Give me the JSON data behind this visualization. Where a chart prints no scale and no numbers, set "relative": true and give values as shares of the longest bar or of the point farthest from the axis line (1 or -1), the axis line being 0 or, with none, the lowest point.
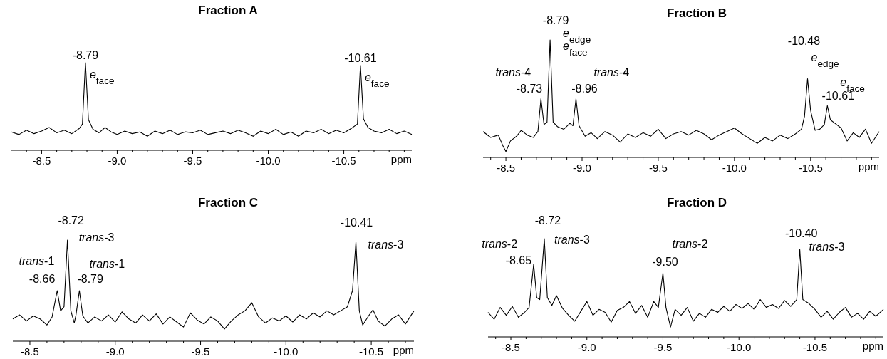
{
  "chart_data": [
    {
      "type": "line",
      "title": "Fraction A",
      "xlabel": "ppm",
      "relative": true,
      "xlim": [
        -8.3,
        -10.95
      ],
      "xticks": [
        {
          "value": -8.4,
          "label": null
        },
        -8.5,
        {
          "value": -8.6,
          "label": null
        },
        {
          "value": -8.7,
          "label": null
        },
        {
          "value": -8.8,
          "label": null
        },
        {
          "value": -8.9,
          "label": null
        },
        {
          "value": -9,
          "label": "-9.0"
        },
        {
          "value": -9.1,
          "label": null
        },
        {
          "value": -9.2,
          "label": null
        },
        {
          "value": -9.3,
          "label": null
        },
        {
          "value": -9.4,
          "label": null
        },
        -9.5,
        {
          "value": -9.6,
          "label": null
        },
        {
          "value": -9.7,
          "label": null
        },
        {
          "value": -9.8,
          "label": null
        },
        {
          "value": -9.9,
          "label": null
        },
        {
          "value": -10,
          "label": "-10.0"
        },
        {
          "value": -10.1,
          "label": null
        },
        {
          "value": -10.2,
          "label": null
        },
        {
          "value": -10.3,
          "label": null
        },
        {
          "value": -10.4,
          "label": null
        },
        -10.5,
        {
          "value": -10.6,
          "label": null
        },
        {
          "value": -10.7,
          "label": null
        },
        {
          "value": -10.8,
          "label": null
        },
        {
          "value": -10.9,
          "label": null
        }
      ],
      "series": [
        {
          "color": "#000000",
          "x": [
            -8.3,
            -8.35,
            -8.4,
            -8.45,
            -8.5,
            -8.55,
            -8.6,
            -8.65,
            -8.7,
            -8.75,
            -8.77,
            -8.79,
            -8.81,
            -8.84,
            -8.88,
            -8.92,
            -8.96,
            -9.0,
            -9.05,
            -9.1,
            -9.15,
            -9.2,
            -9.25,
            -9.3,
            -9.35,
            -9.4,
            -9.45,
            -9.5,
            -9.55,
            -9.6,
            -9.65,
            -9.7,
            -9.75,
            -9.8,
            -9.85,
            -9.9,
            -9.95,
            -10.0,
            -10.05,
            -10.1,
            -10.15,
            -10.2,
            -10.25,
            -10.3,
            -10.35,
            -10.4,
            -10.45,
            -10.5,
            -10.55,
            -10.59,
            -10.61,
            -10.63,
            -10.66,
            -10.7,
            -10.75,
            -10.8,
            -10.85,
            -10.9,
            -10.95
          ],
          "values": [
            0.21,
            0.18,
            0.23,
            0.19,
            0.22,
            0.26,
            0.2,
            0.23,
            0.19,
            0.25,
            0.3,
            1.0,
            0.35,
            0.24,
            0.2,
            0.26,
            0.21,
            0.18,
            0.22,
            0.19,
            0.21,
            0.16,
            0.22,
            0.19,
            0.23,
            0.18,
            0.21,
            0.2,
            0.23,
            0.18,
            0.2,
            0.22,
            0.19,
            0.23,
            0.2,
            0.16,
            0.22,
            0.19,
            0.24,
            0.18,
            0.21,
            0.16,
            0.22,
            0.2,
            0.24,
            0.19,
            0.23,
            0.2,
            0.25,
            0.3,
            0.97,
            0.36,
            0.26,
            0.22,
            0.2,
            0.24,
            0.19,
            0.22,
            0.18
          ]
        }
      ],
      "annotations": [
        {
          "text": "-8.79",
          "x": -8.79,
          "y": 1.0
        },
        {
          "text": "e$_{face}$",
          "x": -8.79,
          "y": 1.0
        },
        {
          "text": "-10.61",
          "x": -10.61,
          "y": 0.97
        },
        {
          "text": "e$_{face}$",
          "x": -10.61,
          "y": 0.97
        }
      ]
    },
    {
      "type": "line",
      "title": "Fraction B",
      "xlabel": "ppm",
      "relative": true,
      "xlim": [
        -8.35,
        -10.95
      ],
      "xticks": [
        {
          "value": -8.4,
          "label": null
        },
        -8.5,
        {
          "value": -8.6,
          "label": null
        },
        {
          "value": -8.7,
          "label": null
        },
        {
          "value": -8.8,
          "label": null
        },
        {
          "value": -8.9,
          "label": null
        },
        {
          "value": -9,
          "label": "-9.0"
        },
        {
          "value": -9.1,
          "label": null
        },
        {
          "value": -9.2,
          "label": null
        },
        {
          "value": -9.3,
          "label": null
        },
        {
          "value": -9.4,
          "label": null
        },
        -9.5,
        {
          "value": -9.6,
          "label": null
        },
        {
          "value": -9.7,
          "label": null
        },
        {
          "value": -9.8,
          "label": null
        },
        {
          "value": -9.9,
          "label": null
        },
        {
          "value": -10,
          "label": "-10.0"
        },
        {
          "value": -10.1,
          "label": null
        },
        {
          "value": -10.2,
          "label": null
        },
        {
          "value": -10.3,
          "label": null
        },
        {
          "value": -10.4,
          "label": null
        },
        -10.5,
        {
          "value": -10.6,
          "label": null
        },
        {
          "value": -10.7,
          "label": null
        },
        {
          "value": -10.8,
          "label": null
        },
        {
          "value": -10.9,
          "label": null
        }
      ],
      "series": [
        {
          "color": "#000000",
          "x": [
            -8.35,
            -8.4,
            -8.45,
            -8.48,
            -8.5,
            -8.53,
            -8.57,
            -8.6,
            -8.64,
            -8.68,
            -8.71,
            -8.73,
            -8.75,
            -8.77,
            -8.79,
            -8.81,
            -8.84,
            -8.88,
            -8.92,
            -8.94,
            -8.96,
            -8.98,
            -9.02,
            -9.06,
            -9.1,
            -9.15,
            -9.2,
            -9.25,
            -9.3,
            -9.35,
            -9.4,
            -9.45,
            -9.5,
            -9.55,
            -9.6,
            -9.65,
            -9.7,
            -9.75,
            -9.8,
            -9.85,
            -9.9,
            -9.95,
            -10.0,
            -10.05,
            -10.1,
            -10.15,
            -10.2,
            -10.25,
            -10.3,
            -10.35,
            -10.4,
            -10.44,
            -10.46,
            -10.48,
            -10.5,
            -10.53,
            -10.56,
            -10.59,
            -10.61,
            -10.63,
            -10.66,
            -10.7,
            -10.74,
            -10.78,
            -10.82,
            -10.86,
            -10.9,
            -10.95
          ],
          "values": [
            0.22,
            0.17,
            0.19,
            0.1,
            0.05,
            0.14,
            0.18,
            0.23,
            0.19,
            0.17,
            0.22,
            0.5,
            0.28,
            0.3,
            1.0,
            0.3,
            0.26,
            0.24,
            0.29,
            0.27,
            0.5,
            0.27,
            0.18,
            0.21,
            0.16,
            0.22,
            0.19,
            0.13,
            0.2,
            0.17,
            0.21,
            0.18,
            0.24,
            0.16,
            0.2,
            0.22,
            0.19,
            0.23,
            0.2,
            0.15,
            0.19,
            0.22,
            0.25,
            0.2,
            0.16,
            0.12,
            0.17,
            0.14,
            0.19,
            0.16,
            0.2,
            0.24,
            0.35,
            0.67,
            0.4,
            0.23,
            0.24,
            0.28,
            0.44,
            0.32,
            0.29,
            0.25,
            0.14,
            0.21,
            0.17,
            0.24,
            0.12,
            0.22
          ]
        }
      ],
      "annotations": [
        {
          "text": "-8.79",
          "x": -8.79,
          "y": 1.0
        },
        {
          "text": "e$_{edge}$",
          "x": -8.79,
          "y": 1.0
        },
        {
          "text": "e$_{face}$",
          "x": -8.79,
          "y": 1.0
        },
        {
          "text": "-8.73",
          "x": -8.73,
          "y": 0.5
        },
        {
          "text": "trans-4",
          "x": -8.73,
          "y": 0.5
        },
        {
          "text": "-8.96",
          "x": -8.96,
          "y": 0.5
        },
        {
          "text": "trans-4",
          "x": -8.96,
          "y": 0.5
        },
        {
          "text": "-10.48",
          "x": -10.48,
          "y": 0.67
        },
        {
          "text": "e$_{edge}$",
          "x": -10.48,
          "y": 0.67
        },
        {
          "text": "-10.61",
          "x": -10.61,
          "y": 0.44
        },
        {
          "text": "e$_{face}$",
          "x": -10.61,
          "y": 0.44
        }
      ]
    },
    {
      "type": "line",
      "title": "Fraction C",
      "xlabel": "ppm",
      "relative": true,
      "xlim": [
        -8.4,
        -10.75
      ],
      "xticks": [
        -8.5,
        {
          "value": -8.6,
          "label": null
        },
        {
          "value": -8.7,
          "label": null
        },
        {
          "value": -8.8,
          "label": null
        },
        {
          "value": -8.9,
          "label": null
        },
        {
          "value": -9,
          "label": "-9.0"
        },
        {
          "value": -9.1,
          "label": null
        },
        {
          "value": -9.2,
          "label": null
        },
        {
          "value": -9.3,
          "label": null
        },
        {
          "value": -9.4,
          "label": null
        },
        -9.5,
        {
          "value": -9.6,
          "label": null
        },
        {
          "value": -9.7,
          "label": null
        },
        {
          "value": -9.8,
          "label": null
        },
        {
          "value": -9.9,
          "label": null
        },
        {
          "value": -10,
          "label": "-10.0"
        },
        {
          "value": -10.1,
          "label": null
        },
        {
          "value": -10.2,
          "label": null
        },
        {
          "value": -10.3,
          "label": null
        },
        {
          "value": -10.4,
          "label": null
        },
        -10.5,
        {
          "value": -10.6,
          "label": null
        },
        {
          "value": -10.7,
          "label": null
        }
      ],
      "series": [
        {
          "color": "#000000",
          "x": [
            -8.4,
            -8.44,
            -8.48,
            -8.52,
            -8.56,
            -8.6,
            -8.63,
            -8.66,
            -8.68,
            -8.7,
            -8.72,
            -8.74,
            -8.76,
            -8.77,
            -8.79,
            -8.81,
            -8.84,
            -8.88,
            -8.92,
            -8.96,
            -9.0,
            -9.04,
            -9.08,
            -9.12,
            -9.16,
            -9.2,
            -9.24,
            -9.28,
            -9.32,
            -9.36,
            -9.4,
            -9.44,
            -9.48,
            -9.52,
            -9.56,
            -9.6,
            -9.64,
            -9.68,
            -9.72,
            -9.76,
            -9.8,
            -9.84,
            -9.88,
            -9.92,
            -9.96,
            -10.0,
            -10.04,
            -10.08,
            -10.12,
            -10.16,
            -10.2,
            -10.24,
            -10.28,
            -10.32,
            -10.36,
            -10.39,
            -10.41,
            -10.43,
            -10.45,
            -10.48,
            -10.51,
            -10.54,
            -10.58,
            -10.62,
            -10.66,
            -10.7,
            -10.75
          ],
          "values": [
            0.22,
            0.26,
            0.2,
            0.25,
            0.22,
            0.16,
            0.24,
            0.5,
            0.3,
            0.34,
            1.0,
            0.3,
            0.18,
            0.26,
            0.5,
            0.25,
            0.18,
            0.24,
            0.2,
            0.26,
            0.19,
            0.29,
            0.22,
            0.18,
            0.26,
            0.2,
            0.27,
            0.17,
            0.24,
            0.19,
            0.14,
            0.28,
            0.21,
            0.17,
            0.24,
            0.2,
            0.12,
            0.2,
            0.26,
            0.3,
            0.38,
            0.24,
            0.18,
            0.23,
            0.2,
            0.25,
            0.19,
            0.26,
            0.22,
            0.28,
            0.24,
            0.3,
            0.26,
            0.3,
            0.34,
            0.5,
            0.98,
            0.3,
            0.16,
            0.24,
            0.31,
            0.2,
            0.15,
            0.22,
            0.26,
            0.17,
            0.3
          ]
        }
      ],
      "annotations": [
        {
          "text": "-8.72",
          "x": -8.72,
          "y": 1.0
        },
        {
          "text": "trans-3",
          "x": -8.72,
          "y": 1.0
        },
        {
          "text": "-8.66",
          "x": -8.66,
          "y": 0.5
        },
        {
          "text": "trans-1",
          "x": -8.66,
          "y": 0.5
        },
        {
          "text": "-8.79",
          "x": -8.79,
          "y": 0.5
        },
        {
          "text": "trans-1",
          "x": -8.79,
          "y": 0.5
        },
        {
          "text": "-10.41",
          "x": -10.41,
          "y": 0.98
        },
        {
          "text": "trans-3",
          "x": -10.41,
          "y": 0.98
        }
      ]
    },
    {
      "type": "line",
      "title": "Fraction D",
      "xlabel": "ppm",
      "relative": true,
      "xlim": [
        -8.35,
        -10.95
      ],
      "xticks": [
        {
          "value": -8.4,
          "label": null
        },
        -8.5,
        {
          "value": -8.6,
          "label": null
        },
        {
          "value": -8.7,
          "label": null
        },
        {
          "value": -8.8,
          "label": null
        },
        {
          "value": -8.9,
          "label": null
        },
        {
          "value": -9,
          "label": "-9.0"
        },
        {
          "value": -9.1,
          "label": null
        },
        {
          "value": -9.2,
          "label": null
        },
        {
          "value": -9.3,
          "label": null
        },
        {
          "value": -9.4,
          "label": null
        },
        -9.5,
        {
          "value": -9.6,
          "label": null
        },
        {
          "value": -9.7,
          "label": null
        },
        {
          "value": -9.8,
          "label": null
        },
        {
          "value": -9.9,
          "label": null
        },
        {
          "value": -10,
          "label": "-10.0"
        },
        {
          "value": -10.1,
          "label": null
        },
        {
          "value": -10.2,
          "label": null
        },
        {
          "value": -10.3,
          "label": null
        },
        {
          "value": -10.4,
          "label": null
        },
        -10.5,
        {
          "value": -10.6,
          "label": null
        },
        {
          "value": -10.7,
          "label": null
        },
        {
          "value": -10.8,
          "label": null
        },
        {
          "value": -10.9,
          "label": null
        }
      ],
      "series": [
        {
          "color": "#000000",
          "x": [
            -8.35,
            -8.39,
            -8.43,
            -8.47,
            -8.51,
            -8.55,
            -8.59,
            -8.62,
            -8.65,
            -8.67,
            -8.69,
            -8.72,
            -8.74,
            -8.77,
            -8.8,
            -8.84,
            -8.88,
            -8.92,
            -8.96,
            -9.0,
            -9.04,
            -9.08,
            -9.12,
            -9.16,
            -9.2,
            -9.24,
            -9.28,
            -9.32,
            -9.36,
            -9.4,
            -9.44,
            -9.47,
            -9.5,
            -9.52,
            -9.55,
            -9.58,
            -9.62,
            -9.66,
            -9.7,
            -9.74,
            -9.78,
            -9.82,
            -9.86,
            -9.9,
            -9.94,
            -9.98,
            -10.02,
            -10.06,
            -10.1,
            -10.14,
            -10.18,
            -10.22,
            -10.26,
            -10.3,
            -10.34,
            -10.38,
            -10.4,
            -10.42,
            -10.46,
            -10.5,
            -10.54,
            -10.58,
            -10.62,
            -10.66,
            -10.7,
            -10.74,
            -10.78,
            -10.82,
            -10.86,
            -10.9,
            -10.95
          ],
          "values": [
            0.25,
            0.18,
            0.3,
            0.22,
            0.31,
            0.2,
            0.25,
            0.3,
            0.74,
            0.4,
            0.38,
            1.0,
            0.4,
            0.32,
            0.42,
            0.29,
            0.22,
            0.16,
            0.26,
            0.36,
            0.22,
            0.28,
            0.25,
            0.15,
            0.27,
            0.3,
            0.36,
            0.24,
            0.32,
            0.2,
            0.36,
            0.3,
            0.65,
            0.3,
            0.1,
            0.28,
            0.22,
            0.3,
            0.16,
            0.24,
            0.2,
            0.28,
            0.25,
            0.31,
            0.26,
            0.33,
            0.29,
            0.34,
            0.28,
            0.38,
            0.3,
            0.33,
            0.29,
            0.37,
            0.31,
            0.38,
            0.89,
            0.38,
            0.34,
            0.28,
            0.2,
            0.26,
            0.18,
            0.25,
            0.3,
            0.2,
            0.24,
            0.18,
            0.26,
            0.21,
            0.28
          ]
        }
      ],
      "annotations": [
        {
          "text": "-8.72",
          "x": -8.72,
          "y": 1.0
        },
        {
          "text": "trans-3",
          "x": -8.72,
          "y": 1.0
        },
        {
          "text": "-8.65",
          "x": -8.65,
          "y": 0.74
        },
        {
          "text": "trans-2",
          "x": -8.65,
          "y": 0.74
        },
        {
          "text": "-9.50",
          "x": -9.5,
          "y": 0.65
        },
        {
          "text": "trans-2",
          "x": -9.5,
          "y": 0.65
        },
        {
          "text": "-10.40",
          "x": -10.4,
          "y": 0.89
        },
        {
          "text": "trans-3",
          "x": -10.4,
          "y": 0.89
        }
      ]
    }
  ]
}
